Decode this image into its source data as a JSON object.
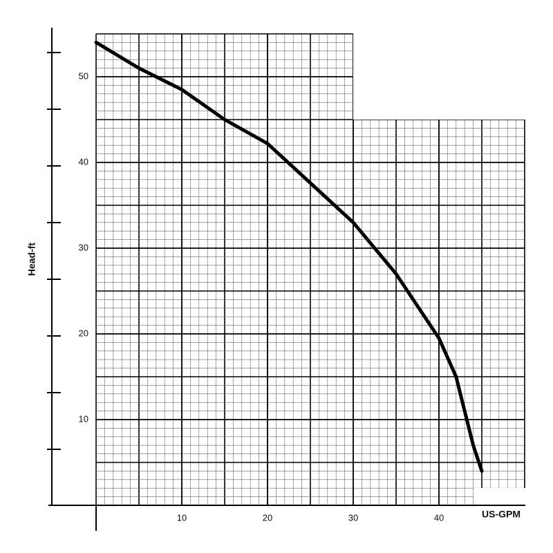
{
  "chart_data": {
    "type": "line",
    "x_label": "US-GPM",
    "y_label": "Head-ft",
    "x": [
      0,
      5,
      10,
      15,
      20,
      25,
      30,
      35,
      40,
      42,
      43,
      44,
      45
    ],
    "values": [
      54,
      51,
      48.5,
      45,
      42.2,
      37.6,
      33,
      27,
      19.5,
      15,
      11,
      7,
      4
    ],
    "color": "#000000",
    "xlim": [
      0,
      50
    ],
    "ylim": [
      0,
      55
    ],
    "xticks": [
      10,
      20,
      30,
      40
    ],
    "yticks": [
      10,
      20,
      30,
      40,
      50
    ],
    "grid": true
  }
}
